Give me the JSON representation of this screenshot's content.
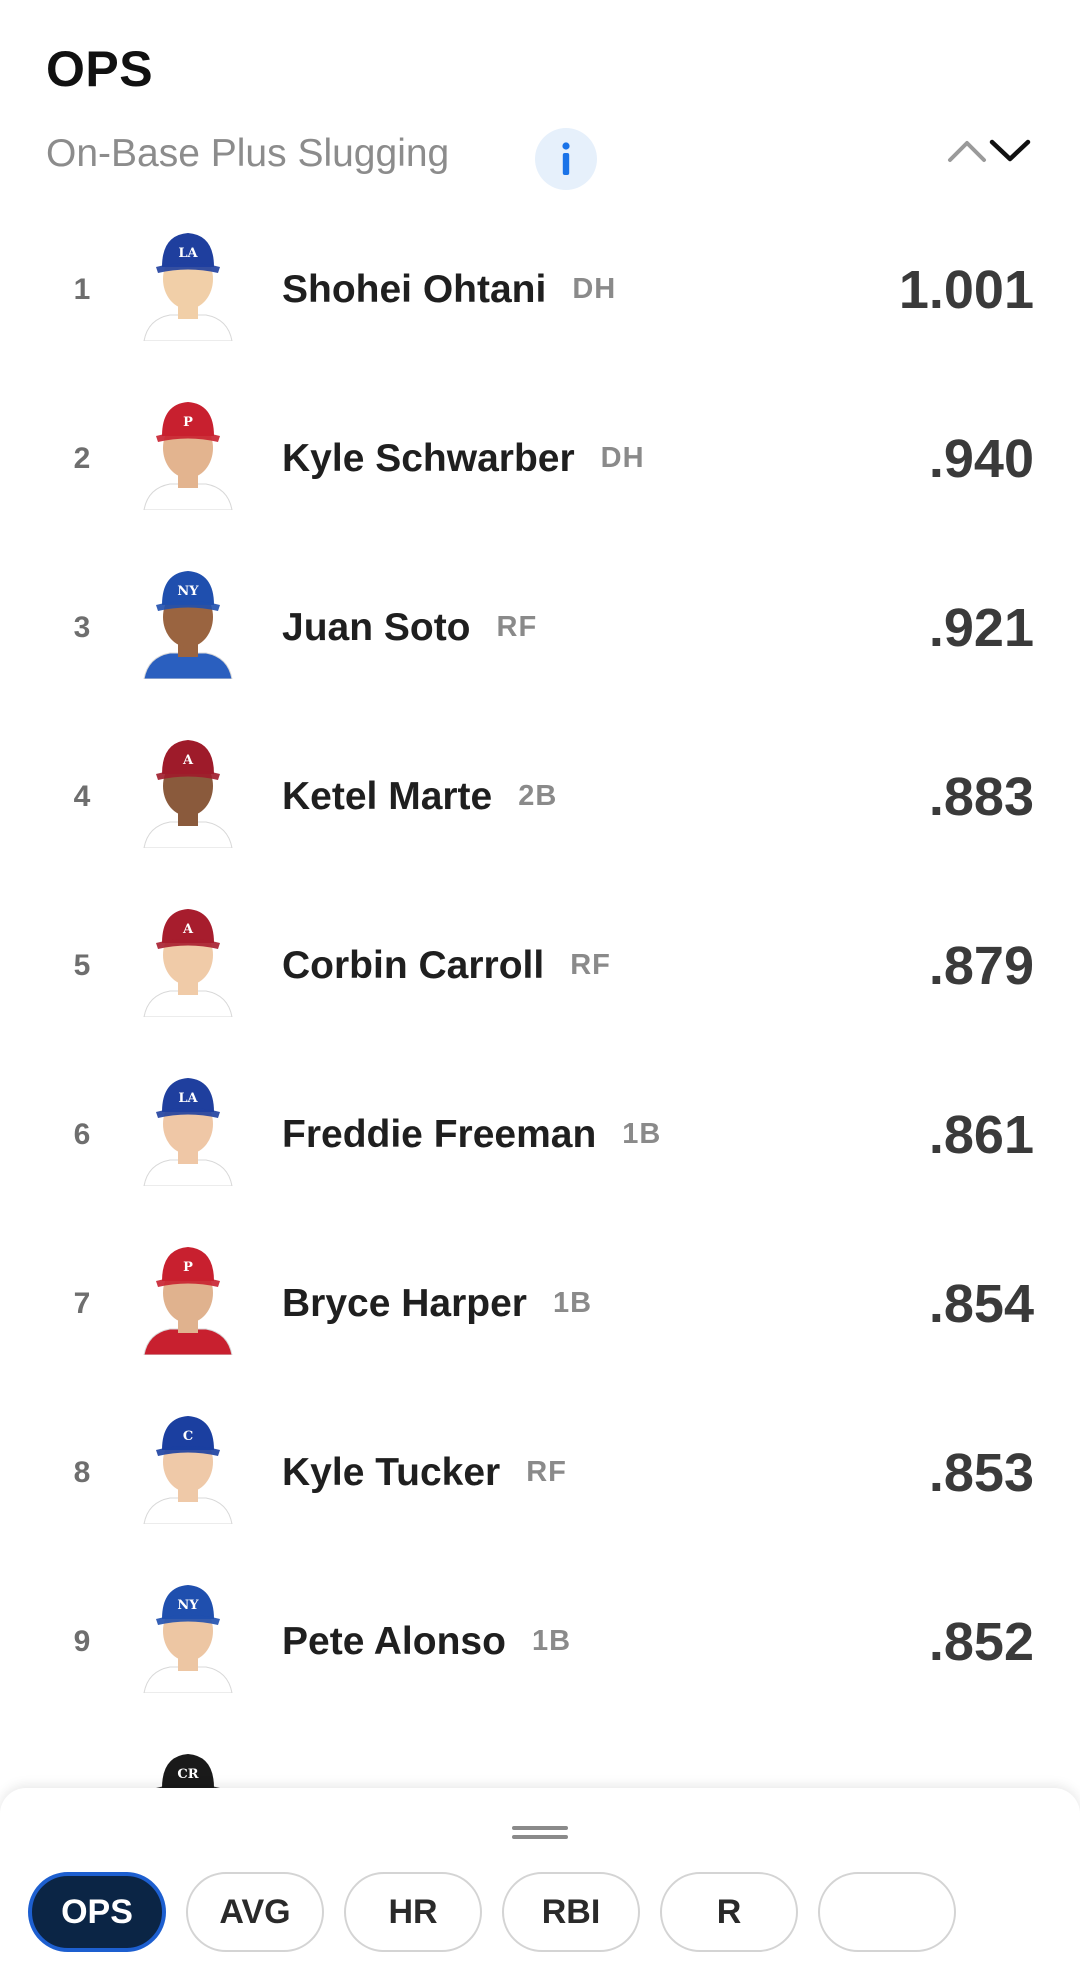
{
  "header": {
    "title": "OPS",
    "subtitle": "On-Base Plus Slugging",
    "info_icon": "info-icon",
    "sort_icons": [
      "chevron-up-icon",
      "chevron-down-icon"
    ]
  },
  "leaders": [
    {
      "rank": "1",
      "name": "Shohei Ohtani",
      "position": "DH",
      "value": "1.001",
      "cap_color": "#1f3f9e",
      "cap_letter": "LA",
      "skin": "#f1cfa8",
      "jersey": "#ffffff"
    },
    {
      "rank": "2",
      "name": "Kyle Schwarber",
      "position": "DH",
      "value": ".940",
      "cap_color": "#c8202f",
      "cap_letter": "P",
      "skin": "#e3b48f",
      "jersey": "#ffffff"
    },
    {
      "rank": "3",
      "name": "Juan Soto",
      "position": "RF",
      "value": ".921",
      "cap_color": "#1f4fae",
      "cap_letter": "NY",
      "skin": "#9a6440",
      "jersey": "#2a5fbf"
    },
    {
      "rank": "4",
      "name": "Ketel Marte",
      "position": "2B",
      "value": ".883",
      "cap_color": "#9e1b2a",
      "cap_letter": "A",
      "skin": "#8a5a3c",
      "jersey": "#ffffff"
    },
    {
      "rank": "5",
      "name": "Corbin Carroll",
      "position": "RF",
      "value": ".879",
      "cap_color": "#a71d2d",
      "cap_letter": "A",
      "skin": "#f0cba8",
      "jersey": "#ffffff"
    },
    {
      "rank": "6",
      "name": "Freddie Freeman",
      "position": "1B",
      "value": ".861",
      "cap_color": "#1f3f9e",
      "cap_letter": "LA",
      "skin": "#efc7a6",
      "jersey": "#ffffff"
    },
    {
      "rank": "7",
      "name": "Bryce Harper",
      "position": "1B",
      "value": ".854",
      "cap_color": "#c8202f",
      "cap_letter": "P",
      "skin": "#e0b28e",
      "jersey": "#c8202f"
    },
    {
      "rank": "8",
      "name": "Kyle Tucker",
      "position": "RF",
      "value": ".853",
      "cap_color": "#1b3fa0",
      "cap_letter": "C",
      "skin": "#efc9a8",
      "jersey": "#ffffff"
    },
    {
      "rank": "9",
      "name": "Pete Alonso",
      "position": "1B",
      "value": ".852",
      "cap_color": "#1f4fae",
      "cap_letter": "NY",
      "skin": "#edc6a3",
      "jersey": "#ffffff"
    },
    {
      "rank": "",
      "name": "",
      "position": "",
      "value": "",
      "cap_color": "#1a1a1a",
      "cap_letter": "CR",
      "skin": "#e6bd98",
      "jersey": "#ffffff"
    }
  ],
  "sheet": {
    "handle_icon": "drag-handle-icon",
    "tabs": [
      "OPS",
      "AVG",
      "HR",
      "RBI",
      "R"
    ],
    "active_tab": "OPS"
  },
  "colors": {
    "active_tab_bg": "#0b2545",
    "active_tab_border": "#1d5fd0",
    "info_blue": "#1a73e8"
  }
}
